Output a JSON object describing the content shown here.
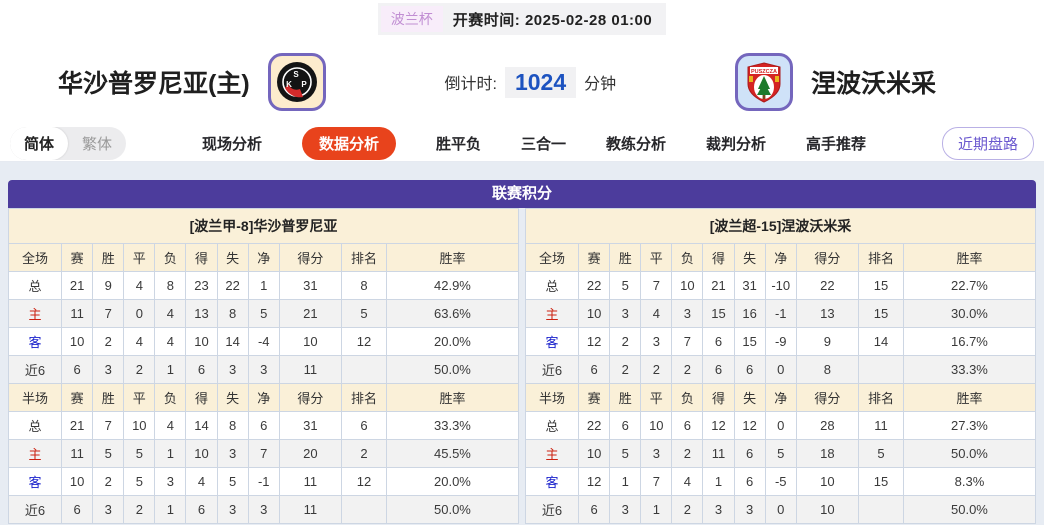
{
  "top": {
    "league_badge": "波兰杯",
    "kickoff_label": "开赛时间:",
    "kickoff_time": "2025-02-28 01:00"
  },
  "header": {
    "home_team": "华沙普罗尼亚(主)",
    "away_team": "涅波沃米采",
    "home_crest": "polonia-warszawa-crest",
    "away_crest": "puszcza-niepolomice-crest",
    "countdown_label": "倒计时:",
    "countdown_value": "1024",
    "countdown_unit": "分钟"
  },
  "tabs": {
    "lang_simplified": "简体",
    "lang_traditional": "繁体",
    "items": [
      {
        "label": "现场分析",
        "active": false
      },
      {
        "label": "数据分析",
        "active": true
      },
      {
        "label": "胜平负",
        "active": false
      },
      {
        "label": "三合一",
        "active": false
      },
      {
        "label": "教练分析",
        "active": false
      },
      {
        "label": "裁判分析",
        "active": false
      },
      {
        "label": "高手推荐",
        "active": false
      }
    ],
    "recent_button": "近期盘路"
  },
  "table": {
    "title": "联赛积分",
    "full_header": "全场",
    "half_header": "半场",
    "columns": [
      "赛",
      "胜",
      "平",
      "负",
      "得",
      "失",
      "净",
      "得分",
      "排名",
      "胜率"
    ],
    "home": {
      "team_header": "[波兰甲-8]华沙普罗尼亚",
      "full": [
        {
          "label": "总",
          "values": [
            "21",
            "9",
            "4",
            "8",
            "23",
            "22",
            "1",
            "31",
            "8",
            "42.9%"
          ]
        },
        {
          "label": "主",
          "values": [
            "11",
            "7",
            "0",
            "4",
            "13",
            "8",
            "5",
            "21",
            "5",
            "63.6%"
          ]
        },
        {
          "label": "客",
          "values": [
            "10",
            "2",
            "4",
            "4",
            "10",
            "14",
            "-4",
            "10",
            "12",
            "20.0%"
          ]
        },
        {
          "label": "近6",
          "values": [
            "6",
            "3",
            "2",
            "1",
            "6",
            "3",
            "3",
            "11",
            "",
            "50.0%"
          ]
        }
      ],
      "half": [
        {
          "label": "总",
          "values": [
            "21",
            "7",
            "10",
            "4",
            "14",
            "8",
            "6",
            "31",
            "6",
            "33.3%"
          ]
        },
        {
          "label": "主",
          "values": [
            "11",
            "5",
            "5",
            "1",
            "10",
            "3",
            "7",
            "20",
            "2",
            "45.5%"
          ]
        },
        {
          "label": "客",
          "values": [
            "10",
            "2",
            "5",
            "3",
            "4",
            "5",
            "-1",
            "11",
            "12",
            "20.0%"
          ]
        },
        {
          "label": "近6",
          "values": [
            "6",
            "3",
            "2",
            "1",
            "6",
            "3",
            "3",
            "11",
            "",
            "50.0%"
          ]
        }
      ]
    },
    "away": {
      "team_header": "[波兰超-15]涅波沃米采",
      "full": [
        {
          "label": "总",
          "values": [
            "22",
            "5",
            "7",
            "10",
            "21",
            "31",
            "-10",
            "22",
            "15",
            "22.7%"
          ]
        },
        {
          "label": "主",
          "values": [
            "10",
            "3",
            "4",
            "3",
            "15",
            "16",
            "-1",
            "13",
            "15",
            "30.0%"
          ]
        },
        {
          "label": "客",
          "values": [
            "12",
            "2",
            "3",
            "7",
            "6",
            "15",
            "-9",
            "9",
            "14",
            "16.7%"
          ]
        },
        {
          "label": "近6",
          "values": [
            "6",
            "2",
            "2",
            "2",
            "6",
            "6",
            "0",
            "8",
            "",
            "33.3%"
          ]
        }
      ],
      "half": [
        {
          "label": "总",
          "values": [
            "22",
            "6",
            "10",
            "6",
            "12",
            "12",
            "0",
            "28",
            "11",
            "27.3%"
          ]
        },
        {
          "label": "主",
          "values": [
            "10",
            "5",
            "3",
            "2",
            "11",
            "6",
            "5",
            "18",
            "5",
            "50.0%"
          ]
        },
        {
          "label": "客",
          "values": [
            "12",
            "1",
            "7",
            "4",
            "1",
            "6",
            "-5",
            "10",
            "15",
            "8.3%"
          ]
        },
        {
          "label": "近6",
          "values": [
            "6",
            "3",
            "1",
            "2",
            "3",
            "3",
            "0",
            "10",
            "",
            "50.0%"
          ]
        }
      ]
    }
  },
  "colors": {
    "section_purple": "#4c3c9c",
    "header_cream": "#faf0d8",
    "active_tab_red": "#e8431c",
    "countdown_blue": "#1d53c0",
    "home_row_red": "#cc2211",
    "away_row_blue": "#1a22cc",
    "badge_purple": "#c18ed3",
    "pill_purple": "#6b59cf"
  }
}
